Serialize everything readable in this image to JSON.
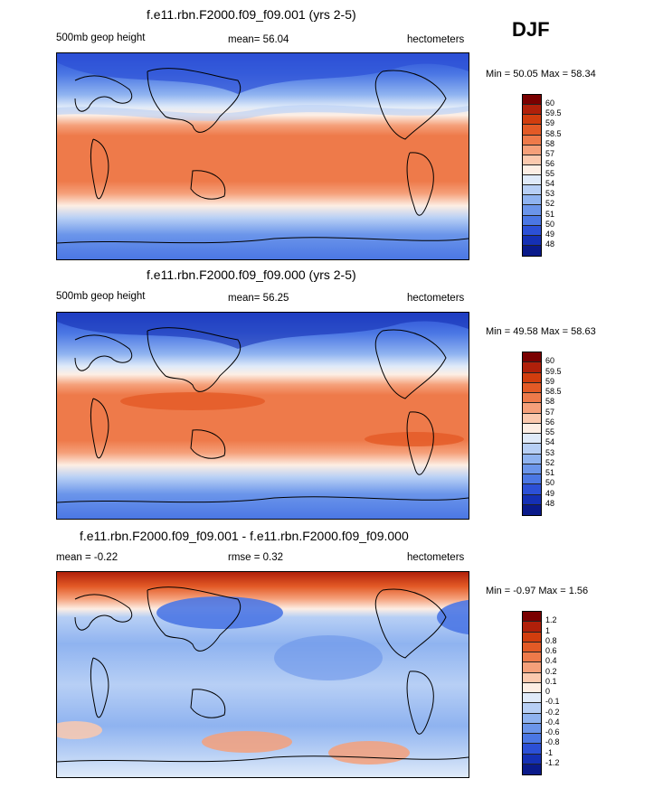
{
  "season": "DJF",
  "panels": [
    {
      "title": "f.e11.rbn.F2000.f09_f09.001 (yrs 2-5)",
      "left_label": "500mb geop height",
      "center_label": "mean=  56.04",
      "right_label": "hectometers",
      "minmax": "Min =  50.05 Max =  58.34",
      "colorbar": {
        "labels": [
          "60",
          "59.5",
          "59",
          "58.5",
          "58",
          "57",
          "56",
          "55",
          "54",
          "53",
          "52",
          "51",
          "50",
          "49",
          "48"
        ],
        "colors": [
          "#7a0000",
          "#b0200a",
          "#d13d0e",
          "#e35a26",
          "#ee7a4a",
          "#f5a07a",
          "#fbc9ae",
          "#fdeee4",
          "#dfeaf9",
          "#b7cff5",
          "#8fb3f0",
          "#6b95ea",
          "#4b77e4",
          "#2c50d6",
          "#1530b4",
          "#0a1a8a"
        ]
      }
    },
    {
      "title": "f.e11.rbn.F2000.f09_f09.000 (yrs 2-5)",
      "left_label": "500mb geop height",
      "center_label": "mean=  56.25",
      "right_label": "hectometers",
      "minmax": "Min =  49.58 Max =  58.63",
      "colorbar": {
        "labels": [
          "60",
          "59.5",
          "59",
          "58.5",
          "58",
          "57",
          "56",
          "55",
          "54",
          "53",
          "52",
          "51",
          "50",
          "49",
          "48"
        ],
        "colors": [
          "#7a0000",
          "#b0200a",
          "#d13d0e",
          "#e35a26",
          "#ee7a4a",
          "#f5a07a",
          "#fbc9ae",
          "#fdeee4",
          "#dfeaf9",
          "#b7cff5",
          "#8fb3f0",
          "#6b95ea",
          "#4b77e4",
          "#2c50d6",
          "#1530b4",
          "#0a1a8a"
        ]
      }
    },
    {
      "title": "f.e11.rbn.F2000.f09_f09.001 - f.e11.rbn.F2000.f09_f09.000",
      "left_label": "mean =  -0.22",
      "center_label": "rmse =   0.32",
      "right_label": "hectometers",
      "minmax": "Min =  -0.97 Max =   1.56",
      "colorbar": {
        "labels": [
          "1.2",
          "1",
          "0.8",
          "0.6",
          "0.4",
          "0.2",
          "0.1",
          "0",
          "-0.1",
          "-0.2",
          "-0.4",
          "-0.6",
          "-0.8",
          "-1",
          "-1.2"
        ],
        "colors": [
          "#7a0000",
          "#b0200a",
          "#d13d0e",
          "#e35a26",
          "#ee7a4a",
          "#f5a07a",
          "#fbc9ae",
          "#fdeee4",
          "#dfeaf9",
          "#b7cff5",
          "#8fb3f0",
          "#6b95ea",
          "#4b77e4",
          "#2c50d6",
          "#1530b4",
          "#0a1a8a"
        ]
      }
    }
  ],
  "chart_data": [
    {
      "type": "heatmap",
      "title": "f.e11.rbn.F2000.f09_f09.001 (yrs 2-5)",
      "variable": "500mb geop height",
      "units": "hectometers",
      "mean": 56.04,
      "min": 50.05,
      "max": 58.34,
      "levels": [
        48,
        49,
        50,
        51,
        52,
        53,
        54,
        55,
        56,
        57,
        58,
        58.5,
        59,
        59.5,
        60
      ]
    },
    {
      "type": "heatmap",
      "title": "f.e11.rbn.F2000.f09_f09.000 (yrs 2-5)",
      "variable": "500mb geop height",
      "units": "hectometers",
      "mean": 56.25,
      "min": 49.58,
      "max": 58.63,
      "levels": [
        48,
        49,
        50,
        51,
        52,
        53,
        54,
        55,
        56,
        57,
        58,
        58.5,
        59,
        59.5,
        60
      ]
    },
    {
      "type": "heatmap",
      "title": "f.e11.rbn.F2000.f09_f09.001 - f.e11.rbn.F2000.f09_f09.000",
      "units": "hectometers",
      "mean": -0.22,
      "rmse": 0.32,
      "min": -0.97,
      "max": 1.56,
      "levels": [
        -1.2,
        -1,
        -0.8,
        -0.6,
        -0.4,
        -0.2,
        -0.1,
        0,
        0.1,
        0.2,
        0.4,
        0.6,
        0.8,
        1,
        1.2
      ]
    }
  ]
}
